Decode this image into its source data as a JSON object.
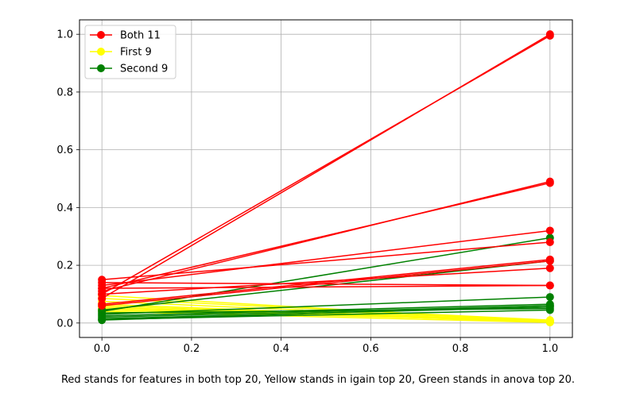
{
  "chart_data": {
    "type": "line",
    "xlim": [
      -0.05,
      1.05
    ],
    "ylim": [
      -0.05,
      1.05
    ],
    "xticks": [
      0.0,
      0.2,
      0.4,
      0.6,
      0.8,
      1.0
    ],
    "xtick_labels": [
      "0.0",
      "0.2",
      "0.4",
      "0.6",
      "0.8",
      "1.0"
    ],
    "yticks": [
      0.0,
      0.2,
      0.4,
      0.6,
      0.8,
      1.0
    ],
    "ytick_labels": [
      "0.0",
      "0.2",
      "0.4",
      "0.6",
      "0.8",
      "1.0"
    ],
    "grid": true,
    "legend_position": "upper-left",
    "caption": "Red stands for features in both top 20, Yellow stands in igain top 20, Green stands in anova top 20.",
    "groups": [
      {
        "name": "Both 11",
        "color": "#ff0000",
        "lines": [
          {
            "x": [
              0,
              1
            ],
            "y": [
              0.085,
              1.0
            ]
          },
          {
            "x": [
              0,
              1
            ],
            "y": [
              0.1,
              0.995
            ]
          },
          {
            "x": [
              0,
              1
            ],
            "y": [
              0.11,
              0.49
            ]
          },
          {
            "x": [
              0,
              1
            ],
            "y": [
              0.12,
              0.485
            ]
          },
          {
            "x": [
              0,
              1
            ],
            "y": [
              0.13,
              0.32
            ]
          },
          {
            "x": [
              0,
              1
            ],
            "y": [
              0.15,
              0.28
            ]
          },
          {
            "x": [
              0,
              1
            ],
            "y": [
              0.065,
              0.22
            ]
          },
          {
            "x": [
              0,
              1
            ],
            "y": [
              0.06,
              0.215
            ]
          },
          {
            "x": [
              0,
              1
            ],
            "y": [
              0.14,
              0.13
            ]
          },
          {
            "x": [
              0,
              1
            ],
            "y": [
              0.12,
              0.13
            ]
          },
          {
            "x": [
              0,
              1
            ],
            "y": [
              0.1,
              0.19
            ]
          }
        ]
      },
      {
        "name": "First 9",
        "color": "#ffff00",
        "lines": [
          {
            "x": [
              0,
              1
            ],
            "y": [
              0.095,
              0.005
            ]
          },
          {
            "x": [
              0,
              1
            ],
            "y": [
              0.085,
              0.01
            ]
          },
          {
            "x": [
              0,
              1
            ],
            "y": [
              0.075,
              0.008
            ]
          },
          {
            "x": [
              0,
              1
            ],
            "y": [
              0.065,
              0.006
            ]
          },
          {
            "x": [
              0,
              1
            ],
            "y": [
              0.06,
              0.004
            ]
          },
          {
            "x": [
              0,
              1
            ],
            "y": [
              0.055,
              0.003
            ]
          },
          {
            "x": [
              0,
              1
            ],
            "y": [
              0.05,
              0.005
            ]
          },
          {
            "x": [
              0,
              1
            ],
            "y": [
              0.045,
              0.007
            ]
          },
          {
            "x": [
              0,
              1
            ],
            "y": [
              0.04,
              0.002
            ]
          }
        ]
      },
      {
        "name": "Second 9",
        "color": "#008000",
        "lines": [
          {
            "x": [
              0,
              1
            ],
            "y": [
              0.04,
              0.295
            ]
          },
          {
            "x": [
              0,
              1
            ],
            "y": [
              0.045,
              0.215
            ]
          },
          {
            "x": [
              0,
              1
            ],
            "y": [
              0.03,
              0.09
            ]
          },
          {
            "x": [
              0,
              1
            ],
            "y": [
              0.025,
              0.065
            ]
          },
          {
            "x": [
              0,
              1
            ],
            "y": [
              0.02,
              0.06
            ]
          },
          {
            "x": [
              0,
              1
            ],
            "y": [
              0.015,
              0.055
            ]
          },
          {
            "x": [
              0,
              1
            ],
            "y": [
              0.035,
              0.05
            ]
          },
          {
            "x": [
              0,
              1
            ],
            "y": [
              0.012,
              0.045
            ]
          },
          {
            "x": [
              0,
              1
            ],
            "y": [
              0.01,
              0.06
            ]
          }
        ]
      }
    ]
  }
}
